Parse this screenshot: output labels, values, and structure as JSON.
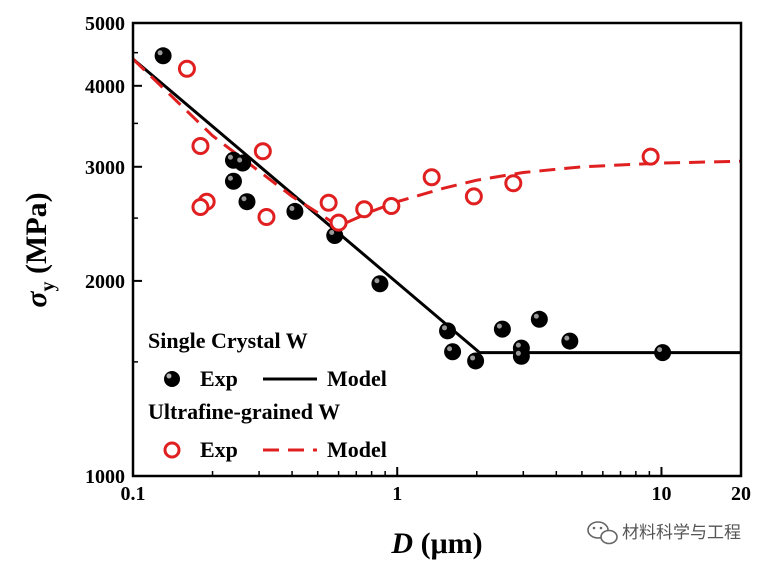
{
  "chart_data": {
    "type": "scatter",
    "x_scale": "log",
    "y_scale": "log",
    "xlim": [
      0.1,
      20
    ],
    "ylim": [
      1000,
      5000
    ],
    "x_ticks": [
      {
        "value": 0.1,
        "label": "0.1"
      },
      {
        "value": 1,
        "label": "1"
      },
      {
        "value": 10,
        "label": "10"
      },
      {
        "value": 20,
        "label": "20"
      }
    ],
    "y_ticks": [
      {
        "value": 1000,
        "label": "1000"
      },
      {
        "value": 2000,
        "label": "2000"
      },
      {
        "value": 3000,
        "label": "3000"
      },
      {
        "value": 4000,
        "label": "4000"
      },
      {
        "value": 5000,
        "label": "5000"
      }
    ],
    "xlabel": {
      "symbol": "D",
      "unit": " (μm)"
    },
    "ylabel": {
      "symbol": "σ",
      "subscript": "y",
      "unit": " (MPa)"
    },
    "legend_position": "bottom-left",
    "groups": [
      {
        "name": "Single Crystal W",
        "color": "#000000",
        "exp": {
          "label": "Exp",
          "marker": "filled-circle",
          "points": [
            [
              0.13,
              4450
            ],
            [
              0.24,
              3070
            ],
            [
              0.26,
              3040
            ],
            [
              0.24,
              2850
            ],
            [
              0.27,
              2650
            ],
            [
              0.41,
              2560
            ],
            [
              0.58,
              2350
            ],
            [
              0.86,
              1980
            ],
            [
              1.55,
              1675
            ],
            [
              1.62,
              1555
            ],
            [
              1.98,
              1505
            ],
            [
              2.5,
              1685
            ],
            [
              2.95,
              1575
            ],
            [
              2.95,
              1530
            ],
            [
              3.45,
              1745
            ],
            [
              4.5,
              1615
            ],
            [
              10.1,
              1550
            ]
          ]
        },
        "model": {
          "label": "Model",
          "style": "solid",
          "points": [
            [
              0.1,
              4400
            ],
            [
              2.05,
              1550
            ],
            [
              20,
              1550
            ]
          ]
        }
      },
      {
        "name": "Ultrafine-grained W",
        "color": "#e02020",
        "exp": {
          "label": "Exp",
          "marker": "open-circle",
          "points": [
            [
              0.16,
              4250
            ],
            [
              0.18,
              3230
            ],
            [
              0.31,
              3170
            ],
            [
              0.19,
              2650
            ],
            [
              0.18,
              2600
            ],
            [
              0.32,
              2510
            ],
            [
              0.55,
              2640
            ],
            [
              0.6,
              2460
            ],
            [
              0.75,
              2580
            ],
            [
              0.95,
              2610
            ],
            [
              1.35,
              2890
            ],
            [
              1.95,
              2700
            ],
            [
              2.75,
              2830
            ],
            [
              9.1,
              3110
            ]
          ]
        },
        "model": {
          "label": "Model",
          "style": "dashed",
          "points": [
            [
              0.1,
              4400
            ],
            [
              0.2,
              3350
            ],
            [
              0.4,
              2700
            ],
            [
              0.6,
              2430
            ],
            [
              0.8,
              2560
            ],
            [
              1,
              2650
            ],
            [
              1.5,
              2780
            ],
            [
              2,
              2860
            ],
            [
              3,
              2940
            ],
            [
              5,
              3000
            ],
            [
              10,
              3040
            ],
            [
              20,
              3060
            ]
          ]
        }
      }
    ]
  },
  "watermark": {
    "icon": "wechat-icon",
    "text": "材料科学与工程"
  }
}
